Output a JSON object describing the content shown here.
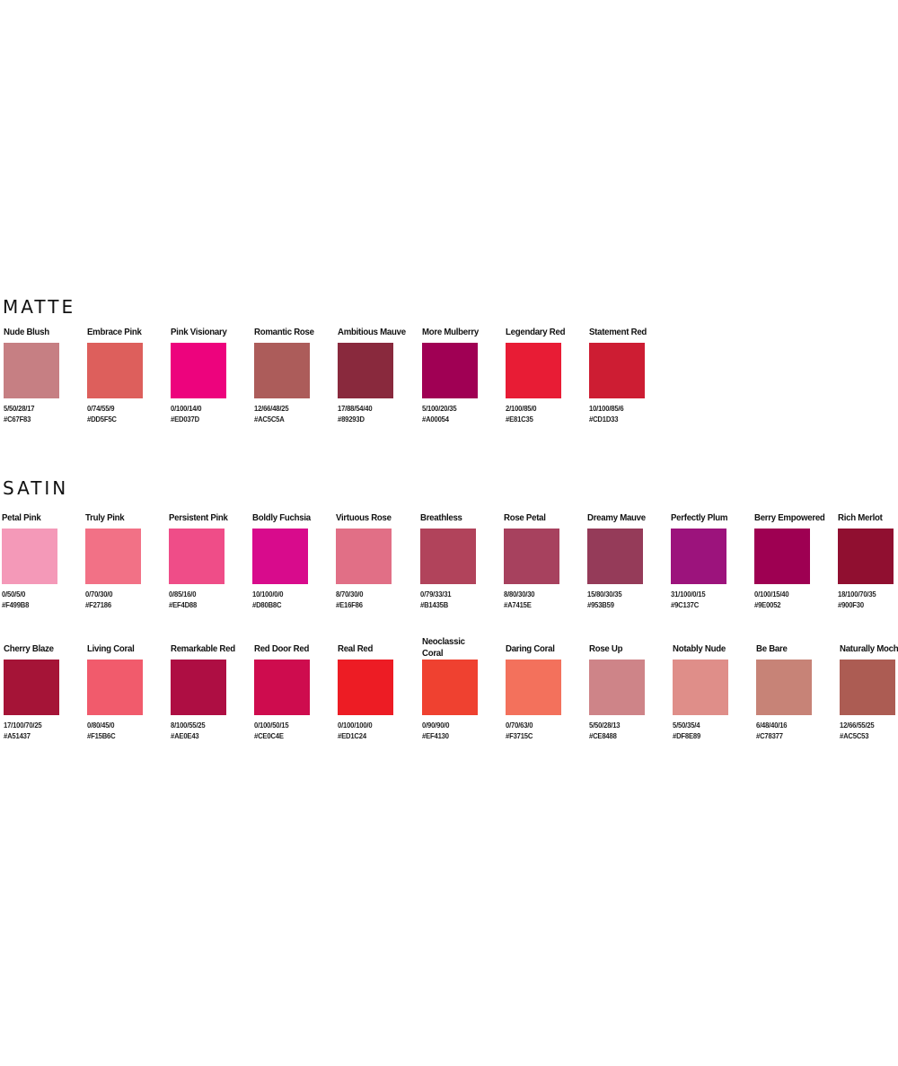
{
  "sections": [
    {
      "title": "MATTE",
      "rows": [
        [
          {
            "name": "Nude Blush",
            "cmyk": "5/50/28/17",
            "hex": "#C67F83"
          },
          {
            "name": "Embrace Pink",
            "cmyk": "0/74/55/9",
            "hex": "#DD5F5C"
          },
          {
            "name": "Pink Visionary",
            "cmyk": "0/100/14/0",
            "hex": "#ED037D"
          },
          {
            "name": "Romantic Rose",
            "cmyk": "12/66/48/25",
            "hex": "#AC5C5A"
          },
          {
            "name": "Ambitious Mauve",
            "cmyk": "17/88/54/40",
            "hex": "#89293D"
          },
          {
            "name": "More Mulberry",
            "cmyk": "5/100/20/35",
            "hex": "#A00054"
          },
          {
            "name": "Legendary Red",
            "cmyk": "2/100/85/0",
            "hex": "#E81C35"
          },
          {
            "name": "Statement Red",
            "cmyk": "10/100/85/6",
            "hex": "#CD1D33"
          }
        ]
      ]
    },
    {
      "title": "SATIN",
      "rows": [
        [
          {
            "name": "Petal Pink",
            "cmyk": "0/50/5/0",
            "hex": "#F499B8"
          },
          {
            "name": "Truly Pink",
            "cmyk": "0/70/30/0",
            "hex": "#F27186"
          },
          {
            "name": "Persistent Pink",
            "cmyk": "0/85/16/0",
            "hex": "#EF4D88"
          },
          {
            "name": "Boldly Fuchsia",
            "cmyk": "10/100/0/0",
            "hex": "#D80B8C"
          },
          {
            "name": "Virtuous Rose",
            "cmyk": "8/70/30/0",
            "hex": "#E16F86"
          },
          {
            "name": "Breathless",
            "cmyk": "0/79/33/31",
            "hex": "#B1435B"
          },
          {
            "name": "Rose Petal",
            "cmyk": "8/80/30/30",
            "hex": "#A7415E"
          },
          {
            "name": "Dreamy Mauve",
            "cmyk": "15/80/30/35",
            "hex": "#953B59"
          },
          {
            "name": "Perfectly Plum",
            "cmyk": "31/100/0/15",
            "hex": "#9C137C"
          },
          {
            "name": "Berry Empowered",
            "cmyk": "0/100/15/40",
            "hex": "#9E0052"
          },
          {
            "name": "Rich Merlot",
            "cmyk": "18/100/70/35",
            "hex": "#900F30"
          }
        ],
        [
          {
            "name": "Cherry Blaze",
            "cmyk": "17/100/70/25",
            "hex": "#A51437"
          },
          {
            "name": "Living Coral",
            "cmyk": "0/80/45/0",
            "hex": "#F15B6C"
          },
          {
            "name": "Remarkable Red",
            "cmyk": "8/100/55/25",
            "hex": "#AE0E43"
          },
          {
            "name": "Red Door Red",
            "cmyk": "0/100/50/15",
            "hex": "#CE0C4E"
          },
          {
            "name": "Real Red",
            "cmyk": "0/100/100/0",
            "hex": "#ED1C24"
          },
          {
            "name": "Neoclassic Coral",
            "cmyk": "0/90/90/0",
            "hex": "#EF4130"
          },
          {
            "name": "Daring Coral",
            "cmyk": "0/70/63/0",
            "hex": "#F3715C"
          },
          {
            "name": "Rose Up",
            "cmyk": "5/50/28/13",
            "hex": "#CE8488"
          },
          {
            "name": "Notably Nude",
            "cmyk": "5/50/35/4",
            "hex": "#DF8E89"
          },
          {
            "name": "Be Bare",
            "cmyk": "6/48/40/16",
            "hex": "#C78377"
          },
          {
            "name": "Naturally Mocha",
            "cmyk": "12/66/55/25",
            "hex": "#AC5C53"
          }
        ]
      ]
    }
  ]
}
